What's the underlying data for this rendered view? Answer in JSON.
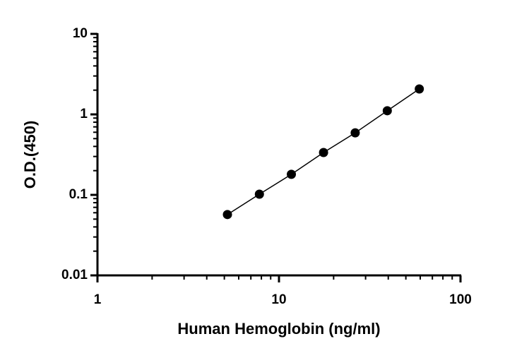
{
  "chart_data": {
    "type": "scatter",
    "line": true,
    "x_label": "Human Hemoglobin (ng/ml)",
    "y_label": "O.D.(450)",
    "x": [
      5.2,
      7.8,
      11.7,
      17.6,
      26.3,
      39.5,
      59.3
    ],
    "series": [
      {
        "color": "#000000",
        "values": [
          0.057,
          0.102,
          0.18,
          0.336,
          0.59,
          1.11,
          2.07
        ]
      }
    ],
    "xlim": [
      1,
      100
    ],
    "xticks": [
      1,
      10,
      100
    ],
    "xlog": true,
    "ylim": [
      0.01,
      10
    ],
    "yticks": [
      0.01,
      0.1,
      1,
      10
    ],
    "ylog": true
  }
}
